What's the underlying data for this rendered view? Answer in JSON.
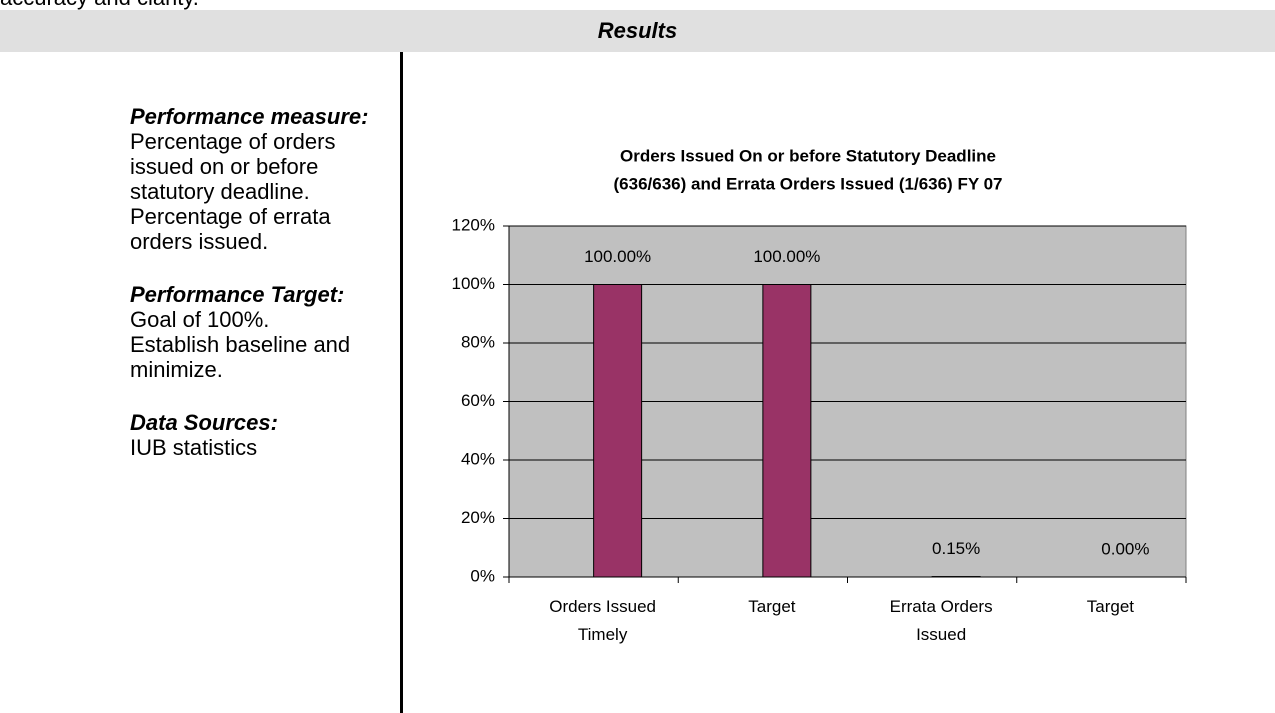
{
  "top_text": "accuracy and clarity.",
  "header": {
    "title": "Results"
  },
  "left": {
    "sections": [
      {
        "heading": "Performance measure:",
        "lines": [
          "Percentage of orders issued on or before statutory deadline.",
          "Percentage of errata orders issued."
        ]
      },
      {
        "heading": "Performance Target:",
        "lines": [
          "Goal of 100%.",
          "Establish baseline and minimize."
        ]
      },
      {
        "heading": "Data Sources:",
        "lines": [
          "IUB statistics"
        ]
      }
    ]
  },
  "chart_data": {
    "type": "bar",
    "title": [
      "Orders Issued On or before Statutory Deadline",
      "(636/636) and Errata Orders Issued (1/636) FY 07"
    ],
    "categories": [
      "Orders Issued Timely",
      "Target",
      "Errata Orders Issued",
      "Target"
    ],
    "values": [
      100,
      100,
      0.15,
      0
    ],
    "value_labels": [
      "100.00%",
      "100.00%",
      "0.15%",
      "0.00%"
    ],
    "color": "#993366",
    "background": "#c0c0c0",
    "ylim": [
      0,
      120
    ],
    "yticks": [
      {
        "value": 0,
        "label": "0%"
      },
      {
        "value": 20,
        "label": "20%"
      },
      {
        "value": 40,
        "label": "40%"
      },
      {
        "value": 60,
        "label": "60%"
      },
      {
        "value": 80,
        "label": "80%"
      },
      {
        "value": 100,
        "label": "100%"
      },
      {
        "value": 120,
        "label": "120%"
      }
    ],
    "grid": true
  }
}
